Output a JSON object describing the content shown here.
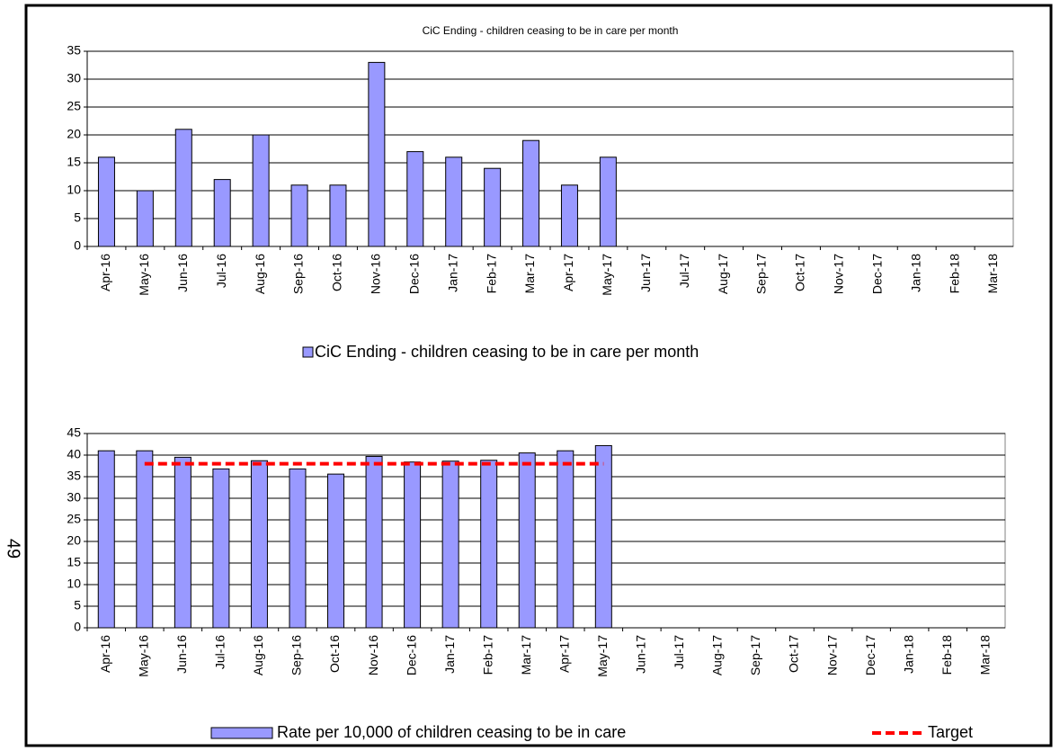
{
  "page_number": "49",
  "chart_data": [
    {
      "type": "bar",
      "title": "CiC Ending - children ceasing to be in care per month",
      "categories": [
        "Apr-16",
        "May-16",
        "Jun-16",
        "Jul-16",
        "Aug-16",
        "Sep-16",
        "Oct-16",
        "Nov-16",
        "Dec-16",
        "Jan-17",
        "Feb-17",
        "Mar-17",
        "Apr-17",
        "May-17",
        "Jun-17",
        "Jul-17",
        "Aug-17",
        "Sep-17",
        "Oct-17",
        "Nov-17",
        "Dec-17",
        "Jan-18",
        "Feb-18",
        "Mar-18"
      ],
      "series": [
        {
          "name": "CiC Ending - children ceasing to be in care per month",
          "type": "bar",
          "color": "#9999ff",
          "values": [
            16,
            10,
            21,
            12,
            20,
            11,
            11,
            33,
            17,
            16,
            14,
            19,
            11,
            16,
            null,
            null,
            null,
            null,
            null,
            null,
            null,
            null,
            null,
            null
          ]
        }
      ],
      "ylim": [
        0,
        35
      ],
      "yticks": [
        0,
        5,
        10,
        15,
        20,
        25,
        30,
        35
      ],
      "grid": true
    },
    {
      "type": "bar",
      "categories": [
        "Apr-16",
        "May-16",
        "Jun-16",
        "Jul-16",
        "Aug-16",
        "Sep-16",
        "Oct-16",
        "Nov-16",
        "Dec-16",
        "Jan-17",
        "Feb-17",
        "Mar-17",
        "Apr-17",
        "May-17",
        "Jun-17",
        "Jul-17",
        "Aug-17",
        "Sep-17",
        "Oct-17",
        "Nov-17",
        "Dec-17",
        "Jan-18",
        "Feb-18",
        "Mar-18"
      ],
      "series": [
        {
          "name": "Rate per 10,000 of children ceasing to be in care",
          "type": "bar",
          "color": "#9999ff",
          "values": [
            41,
            41,
            39.5,
            36.8,
            38.7,
            36.8,
            35.6,
            39.7,
            38.4,
            38.6,
            38.8,
            40.5,
            41,
            42.2,
            null,
            null,
            null,
            null,
            null,
            null,
            null,
            null,
            null,
            null
          ]
        },
        {
          "name": "Target",
          "type": "line",
          "color": "#ff0000",
          "values": [
            null,
            38,
            38,
            38,
            38,
            38,
            38,
            38,
            38,
            38,
            38,
            38,
            38,
            38,
            null,
            null,
            null,
            null,
            null,
            null,
            null,
            null,
            null,
            null
          ]
        }
      ],
      "ylim": [
        0,
        45
      ],
      "yticks": [
        0,
        5,
        10,
        15,
        20,
        25,
        30,
        35,
        40,
        45
      ],
      "grid": true
    }
  ]
}
